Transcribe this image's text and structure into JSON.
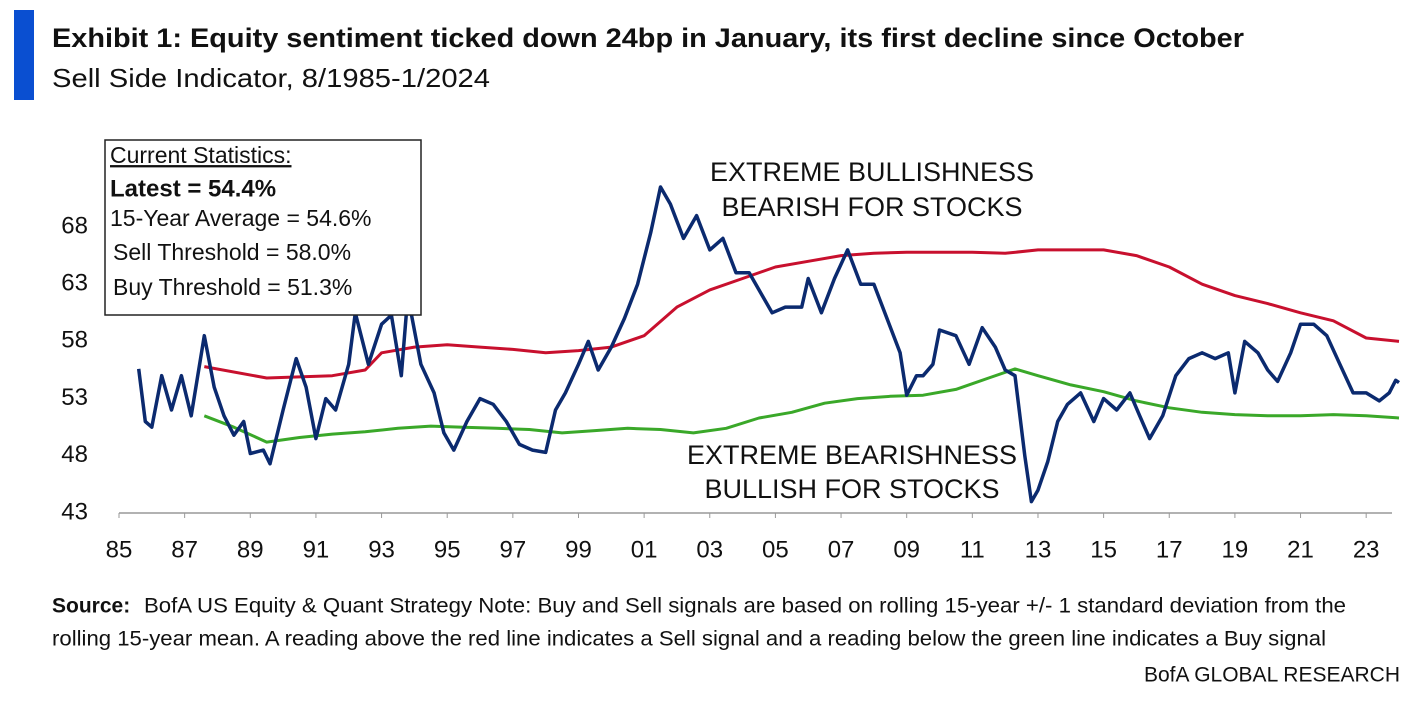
{
  "chart_data": {
    "type": "line",
    "title": "Exhibit 1: Equity sentiment ticked down 24bp in January, its first decline since October",
    "subtitle": "Sell Side Indicator, 8/1985-1/2024",
    "stats_box": [
      "Current Statistics:",
      "Latest = 54.4%",
      "15-Year Average = 54.6%",
      "Sell Threshold = 58.0%",
      "Buy Threshold = 51.3%"
    ],
    "annotations": [
      [
        "EXTREME BULLISHNESS",
        "BEARISH FOR STOCKS"
      ],
      [
        "EXTREME BEARISHNESS",
        "BULLISH FOR STOCKS"
      ]
    ],
    "source_label": "Source:",
    "source_lines": [
      "BofA US Equity & Quant Strategy Note: Buy and Sell signals are based on rolling 15-year +/- 1 standard deviation from the",
      "rolling 15-year mean. A reading above the red line indicates a Sell signal and a reading below the green line indicates a Buy signal"
    ],
    "footer": "BofA GLOBAL RESEARCH",
    "xlim": [
      1985,
      2024
    ],
    "xticks": [
      {
        "value": 1985,
        "label": "85"
      },
      {
        "value": 1987,
        "label": "87"
      },
      {
        "value": 1989,
        "label": "89"
      },
      {
        "value": 1991,
        "label": "91"
      },
      {
        "value": 1993,
        "label": "93"
      },
      {
        "value": 1995,
        "label": "95"
      },
      {
        "value": 1997,
        "label": "97"
      },
      {
        "value": 1999,
        "label": "99"
      },
      {
        "value": 2001,
        "label": "01"
      },
      {
        "value": 2003,
        "label": "03"
      },
      {
        "value": 2005,
        "label": "05"
      },
      {
        "value": 2007,
        "label": "07"
      },
      {
        "value": 2009,
        "label": "09"
      },
      {
        "value": 2011,
        "label": "11"
      },
      {
        "value": 2013,
        "label": "13"
      },
      {
        "value": 2015,
        "label": "15"
      },
      {
        "value": 2017,
        "label": "17"
      },
      {
        "value": 2019,
        "label": "19"
      },
      {
        "value": 2021,
        "label": "21"
      },
      {
        "value": 2023,
        "label": "23"
      }
    ],
    "ylim": [
      43,
      73
    ],
    "yticks": [
      43,
      48,
      53,
      58,
      63,
      68
    ],
    "grid": false,
    "series": [
      {
        "color": "#0b2a6f",
        "x": [
          1985.6,
          1985.8,
          1986.0,
          1986.3,
          1986.6,
          1986.9,
          1987.2,
          1987.6,
          1987.9,
          1988.2,
          1988.5,
          1988.8,
          1989.0,
          1989.4,
          1989.6,
          1990.0,
          1990.4,
          1990.7,
          1991.0,
          1991.3,
          1991.6,
          1992.0,
          1992.2,
          1992.6,
          1993.0,
          1993.3,
          1993.6,
          1993.8,
          1994.2,
          1994.6,
          1994.9,
          1995.2,
          1995.6,
          1996.0,
          1996.4,
          1996.8,
          1997.2,
          1997.6,
          1998.0,
          1998.3,
          1998.6,
          1999.0,
          1999.3,
          1999.6,
          2000.0,
          2000.4,
          2000.8,
          2001.2,
          2001.5,
          2001.8,
          2002.2,
          2002.6,
          2003.0,
          2003.4,
          2003.8,
          2004.2,
          2004.5,
          2004.9,
          2005.3,
          2005.8,
          2006.0,
          2006.4,
          2006.8,
          2007.2,
          2007.6,
          2008.0,
          2008.4,
          2008.8,
          2009.0,
          2009.3,
          2009.5,
          2009.8,
          2010.0,
          2010.5,
          2010.9,
          2011.3,
          2011.7,
          2012.0,
          2012.3,
          2012.6,
          2012.8,
          2013.0,
          2013.3,
          2013.6,
          2013.9,
          2014.3,
          2014.7,
          2015.0,
          2015.4,
          2015.8,
          2016.1,
          2016.4,
          2016.8,
          2017.2,
          2017.6,
          2018.0,
          2018.4,
          2018.8,
          2019.0,
          2019.3,
          2019.7,
          2020.0,
          2020.3,
          2020.7,
          2021.0,
          2021.4,
          2021.8,
          2022.2,
          2022.6,
          2023.0,
          2023.4,
          2023.7,
          2023.9,
          2024.0
        ],
        "values": [
          55.6,
          51,
          50.5,
          55,
          52,
          55,
          51.5,
          58.5,
          54,
          51.5,
          49.8,
          51,
          48.2,
          48.5,
          47.3,
          52,
          56.5,
          54,
          49.5,
          53,
          52,
          56,
          60.5,
          56,
          59.5,
          60.3,
          55,
          62,
          56,
          53.5,
          50,
          48.5,
          51,
          53,
          52.5,
          51,
          49,
          48.5,
          48.3,
          52,
          53.5,
          56,
          58,
          55.5,
          57.5,
          60,
          63,
          67.5,
          71.5,
          70,
          67,
          69,
          66,
          67,
          64,
          64,
          62.5,
          60.5,
          61,
          61,
          63.5,
          60.5,
          63.5,
          66,
          63,
          63,
          60,
          57,
          53.3,
          55,
          55,
          56,
          59,
          58.5,
          56,
          59.2,
          57.5,
          55.5,
          55,
          48,
          44,
          45,
          47.5,
          51,
          52.5,
          53.5,
          51,
          53,
          52,
          53.5,
          51.5,
          49.5,
          51.5,
          55,
          56.5,
          57,
          56.5,
          57,
          53.5,
          58,
          57,
          55.5,
          54.5,
          57,
          59.5,
          59.5,
          58.5,
          56,
          53.5,
          53.5,
          52.8,
          53.5,
          54.6,
          54.4
        ]
      },
      {
        "color": "#c8102e",
        "x": [
          1987.6,
          1989.5,
          1991.5,
          1992.5,
          1993,
          1994,
          1995,
          1996,
          1997,
          1998,
          1999,
          2000,
          2001,
          2002,
          2003,
          2004,
          2005,
          2006,
          2007,
          2008,
          2009,
          2010,
          2011,
          2012,
          2013,
          2014,
          2015,
          2016,
          2017,
          2018,
          2019,
          2020,
          2021,
          2022,
          2023,
          2024
        ],
        "values": [
          55.8,
          54.8,
          55,
          55.5,
          57,
          57.5,
          57.7,
          57.5,
          57.3,
          57,
          57.2,
          57.5,
          58.5,
          61,
          62.5,
          63.5,
          64.5,
          65,
          65.5,
          65.7,
          65.8,
          65.8,
          65.8,
          65.7,
          66,
          66,
          66,
          65.5,
          64.5,
          63,
          62,
          61.3,
          60.5,
          59.8,
          58.3,
          58.0
        ]
      },
      {
        "color": "#3aa829",
        "x": [
          1987.6,
          1988.5,
          1989.5,
          1990.5,
          1991.5,
          1992.5,
          1993.5,
          1994.5,
          1995.5,
          1996.5,
          1997.5,
          1998.5,
          1999.5,
          2000.5,
          2001.5,
          2002.5,
          2003.5,
          2004.5,
          2005.5,
          2006.5,
          2007.5,
          2008.5,
          2009.5,
          2010.5,
          2011.5,
          2012.3,
          2013,
          2014,
          2015,
          2016,
          2017,
          2018,
          2019,
          2020,
          2021,
          2022,
          2023,
          2024
        ],
        "values": [
          51.5,
          50.5,
          49.2,
          49.6,
          49.9,
          50.1,
          50.4,
          50.6,
          50.5,
          50.4,
          50.3,
          50.0,
          50.2,
          50.4,
          50.3,
          50.0,
          50.4,
          51.3,
          51.8,
          52.6,
          53.0,
          53.2,
          53.3,
          53.8,
          54.8,
          55.6,
          55.0,
          54.2,
          53.6,
          52.8,
          52.2,
          51.8,
          51.6,
          51.5,
          51.5,
          51.6,
          51.5,
          51.3
        ]
      }
    ]
  }
}
